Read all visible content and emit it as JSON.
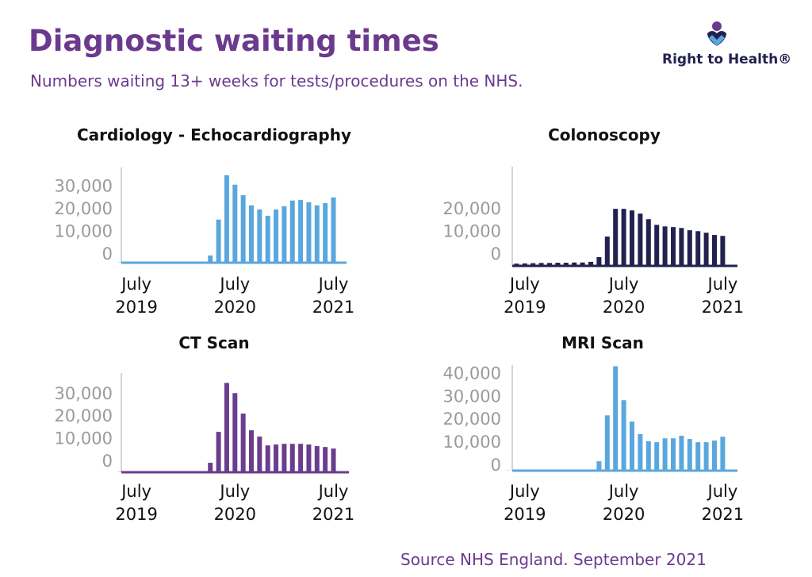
{
  "header": {
    "title": "Diagnostic waiting times",
    "subtitle": "Numbers waiting 13+ weeks for tests/procedures on the NHS.",
    "brand": "Right to Health®"
  },
  "source": "Source NHS England. September 2021",
  "chart_data": [
    {
      "type": "bar",
      "title": "Cardiology - Echocardiography",
      "color": "#5aa7de",
      "categories": [
        null,
        null,
        "July\n2019",
        null,
        null,
        null,
        null,
        null,
        null,
        null,
        null,
        null,
        null,
        null,
        "July\n2020",
        null,
        null,
        null,
        null,
        null,
        null,
        null,
        null,
        null,
        null,
        null,
        "July\n2021"
      ],
      "values": [
        100,
        100,
        100,
        100,
        100,
        100,
        100,
        100,
        100,
        100,
        100,
        3200,
        19000,
        38600,
        34400,
        29800,
        25300,
        23500,
        20700,
        23500,
        24900,
        27400,
        27700,
        26700,
        25300,
        26300,
        28800
      ],
      "ylim": [
        0,
        42000
      ],
      "yticks": [
        0,
        {
          "value": 10000,
          "label": "10,000"
        },
        {
          "value": 20000,
          "label": "20,000"
        },
        {
          "value": 30000,
          "label": "30,000"
        }
      ]
    },
    {
      "type": "bar",
      "title": "Colonoscopy",
      "color": "#22214f",
      "categories": [
        null,
        null,
        "July\n2019",
        null,
        null,
        null,
        null,
        null,
        null,
        null,
        null,
        null,
        null,
        null,
        "July\n2020",
        null,
        null,
        null,
        null,
        null,
        null,
        null,
        null,
        null,
        null,
        null,
        "July\n2021"
      ],
      "values": [
        null,
        1000,
        1100,
        1200,
        1300,
        1300,
        1400,
        1400,
        1500,
        1500,
        1800,
        3900,
        13000,
        25300,
        25300,
        24600,
        23200,
        20700,
        18200,
        17500,
        17200,
        16800,
        15800,
        15400,
        14700,
        13700,
        13300
      ],
      "ylim": [
        0,
        44000
      ],
      "yticks": [
        0,
        {
          "value": 10000,
          "label": "10,000"
        },
        {
          "value": 20000,
          "label": "20,000"
        }
      ]
    },
    {
      "type": "bar",
      "title": "CT Scan",
      "color": "#6a3d8f",
      "categories": [
        null,
        null,
        "July\n2019",
        null,
        null,
        null,
        null,
        null,
        null,
        null,
        null,
        null,
        null,
        null,
        "July\n2020",
        null,
        null,
        null,
        null,
        null,
        null,
        null,
        null,
        null,
        null,
        null,
        "July\n2021"
      ],
      "values": [
        100,
        100,
        100,
        100,
        100,
        100,
        100,
        100,
        100,
        100,
        100,
        4200,
        17900,
        39600,
        35100,
        26000,
        18600,
        15800,
        11900,
        12300,
        12600,
        12600,
        12600,
        12300,
        11600,
        11200,
        10500
      ],
      "ylim": [
        0,
        44000
      ],
      "yticks": [
        0,
        {
          "value": 10000,
          "label": "10,000"
        },
        {
          "value": 20000,
          "label": "20,000"
        },
        {
          "value": 30000,
          "label": "30,000"
        }
      ]
    },
    {
      "type": "bar",
      "title": "MRI Scan",
      "color": "#5aa7de",
      "categories": [
        null,
        null,
        "July\n2019",
        null,
        null,
        null,
        null,
        null,
        null,
        null,
        null,
        null,
        null,
        null,
        "July\n2020",
        null,
        null,
        null,
        null,
        null,
        null,
        null,
        null,
        null,
        null,
        null,
        "July\n2021"
      ],
      "values": [
        100,
        100,
        100,
        100,
        100,
        100,
        100,
        100,
        100,
        100,
        100,
        4100,
        24100,
        45500,
        30700,
        21400,
        15900,
        12800,
        12400,
        14100,
        14100,
        15200,
        13800,
        12400,
        12400,
        13100,
        14800
      ],
      "ylim": [
        0,
        46000
      ],
      "yticks": [
        0,
        {
          "value": 10000,
          "label": "10,000"
        },
        {
          "value": 20000,
          "label": "20,000"
        },
        {
          "value": 30000,
          "label": "30,000"
        },
        {
          "value": 40000,
          "label": "40,000"
        }
      ]
    }
  ]
}
